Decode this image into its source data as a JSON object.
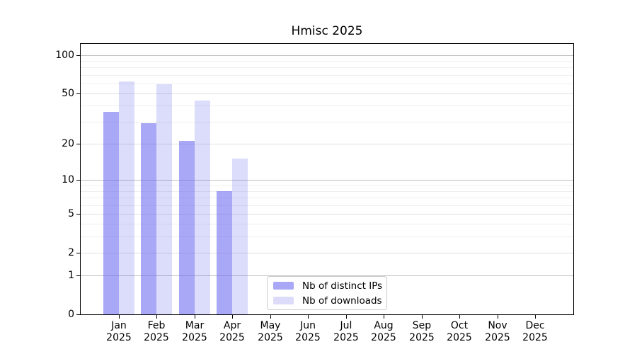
{
  "chart_data": {
    "type": "bar",
    "title": "Hmisc 2025",
    "x_categories": [
      {
        "month": "Jan",
        "year": "2025"
      },
      {
        "month": "Feb",
        "year": "2025"
      },
      {
        "month": "Mar",
        "year": "2025"
      },
      {
        "month": "Apr",
        "year": "2025"
      },
      {
        "month": "May",
        "year": "2025"
      },
      {
        "month": "Jun",
        "year": "2025"
      },
      {
        "month": "Jul",
        "year": "2025"
      },
      {
        "month": "Aug",
        "year": "2025"
      },
      {
        "month": "Sep",
        "year": "2025"
      },
      {
        "month": "Oct",
        "year": "2025"
      },
      {
        "month": "Nov",
        "year": "2025"
      },
      {
        "month": "Dec",
        "year": "2025"
      }
    ],
    "series": [
      {
        "name": "Nb of distinct IPs",
        "base_color": "#6161ef",
        "opacity": 0.55,
        "appears_as": "#a8a8f6",
        "values": [
          36,
          29,
          21,
          8,
          null,
          null,
          null,
          null,
          null,
          null,
          null,
          null
        ]
      },
      {
        "name": "Nb of downloads",
        "base_color": "#6161ef",
        "opacity": 0.22,
        "appears_as": "#dcdcfa",
        "values": [
          62,
          59,
          44,
          15,
          null,
          null,
          null,
          null,
          null,
          null,
          null,
          null
        ]
      }
    ],
    "y_axis": {
      "scale": "log1p",
      "ticks": [
        0,
        1,
        2,
        5,
        10,
        20,
        50,
        100
      ],
      "max_value": 122.5
    },
    "grid": {
      "major": [
        1,
        10,
        100
      ],
      "medium": [
        2,
        5,
        20,
        50
      ],
      "minor": [
        3,
        4,
        6,
        7,
        8,
        9,
        30,
        40,
        60,
        70,
        80,
        90
      ]
    },
    "legend": {
      "position": "bottom-center"
    },
    "colors": {
      "grid_major": "#c0c0c0",
      "grid_medium": "#e0e0e0",
      "grid_minor": "#efefef",
      "axis": "#000000",
      "legend_border": "#cccccc",
      "text": "#000000",
      "background": "#ffffff"
    }
  }
}
